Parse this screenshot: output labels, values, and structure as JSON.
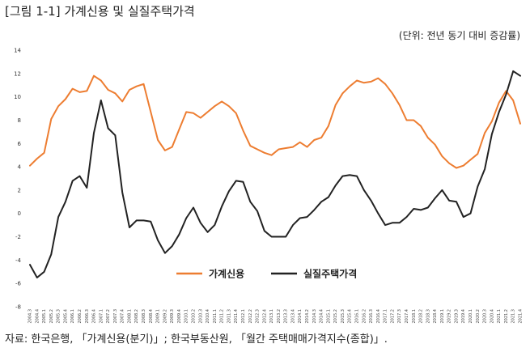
{
  "figure": {
    "title": "[그림 1-1]  가계신용 및 실질주택가격",
    "unit": "(단위: 전년 동기 대비 증감률)",
    "source": "자료: 한국은행, 「가계신용(분기)」; 한국부동산원, 「월간 주택매매가격지수(종합)」."
  },
  "chart_data": {
    "type": "line",
    "title": "",
    "xlabel": "",
    "ylabel": "",
    "ylim": [
      -8,
      14
    ],
    "yticks": [
      -8,
      -6,
      -4,
      -2,
      0,
      2,
      4,
      6,
      8,
      10,
      12,
      14
    ],
    "grid": false,
    "legend_position": "bottom-center",
    "categories": [
      "2004.3",
      "2004.4",
      "2005.1",
      "2005.2",
      "2005.3",
      "2005.4",
      "2006.1",
      "2006.2",
      "2006.3",
      "2006.4",
      "2007.1",
      "2007.2",
      "2007.3",
      "2007.4",
      "2008.1",
      "2008.2",
      "2008.3",
      "2008.4",
      "2009.1",
      "2009.2",
      "2009.3",
      "2009.4",
      "2010.1",
      "2010.2",
      "2010.3",
      "2010.4",
      "2011.1",
      "2011.2",
      "2011.3",
      "2011.4",
      "2012.1",
      "2012.2",
      "2012.3",
      "2012.4",
      "2013.1",
      "2013.2",
      "2013.3",
      "2013.4",
      "2014.1",
      "2014.2",
      "2014.3",
      "2014.4",
      "2015.1",
      "2015.2",
      "2015.3",
      "2015.4",
      "2016.1",
      "2016.2",
      "2016.3",
      "2016.4",
      "2017.1",
      "2017.2",
      "2017.3",
      "2017.4",
      "2018.1",
      "2018.2",
      "2018.3",
      "2018.4",
      "2019.1",
      "2019.2",
      "2019.3",
      "2019.4",
      "2020.1",
      "2020.2",
      "2020.3",
      "2020.4",
      "2021.1",
      "2021.2",
      "2021.3",
      "2021.4"
    ],
    "series": [
      {
        "name": "가계신용",
        "color": "#ED7D31",
        "values": [
          4.1,
          4.7,
          5.2,
          8.1,
          9.2,
          9.8,
          10.7,
          10.4,
          10.5,
          11.8,
          11.4,
          10.6,
          10.3,
          9.6,
          10.6,
          10.9,
          11.1,
          8.7,
          6.3,
          5.4,
          5.7,
          7.2,
          8.7,
          8.6,
          8.2,
          8.7,
          9.2,
          9.6,
          9.2,
          8.6,
          7.1,
          5.8,
          5.5,
          5.2,
          5.0,
          5.5,
          5.6,
          5.7,
          6.1,
          5.7,
          6.3,
          6.5,
          7.5,
          9.3,
          10.3,
          10.9,
          11.4,
          11.2,
          11.3,
          11.6,
          11.1,
          10.3,
          9.3,
          8.0,
          8.0,
          7.5,
          6.5,
          5.9,
          4.9,
          4.3,
          3.9,
          4.1,
          4.6,
          5.1,
          6.9,
          7.9,
          9.5,
          10.5,
          9.7,
          7.7
        ]
      },
      {
        "name": "실질주택가격",
        "color": "#222222",
        "values": [
          -4.4,
          -5.5,
          -5.0,
          -3.5,
          -0.3,
          1.0,
          2.8,
          3.2,
          2.2,
          6.9,
          9.7,
          7.3,
          6.7,
          1.8,
          -1.2,
          -0.6,
          -0.6,
          -0.7,
          -2.3,
          -3.4,
          -2.8,
          -1.8,
          -0.4,
          0.5,
          -0.8,
          -1.6,
          -1.0,
          0.6,
          1.9,
          2.8,
          2.7,
          1.0,
          0.2,
          -1.5,
          -2.0,
          -2.0,
          -2.0,
          -1.0,
          -0.4,
          -0.3,
          0.3,
          1.0,
          1.4,
          2.4,
          3.2,
          3.3,
          3.2,
          2.0,
          1.1,
          0.0,
          -1.0,
          -0.8,
          -0.8,
          -0.3,
          0.4,
          0.3,
          0.5,
          1.3,
          2.0,
          1.1,
          1.0,
          -0.3,
          0.0,
          2.3,
          3.8,
          6.8,
          8.7,
          10.2,
          12.2,
          11.8
        ]
      }
    ]
  }
}
